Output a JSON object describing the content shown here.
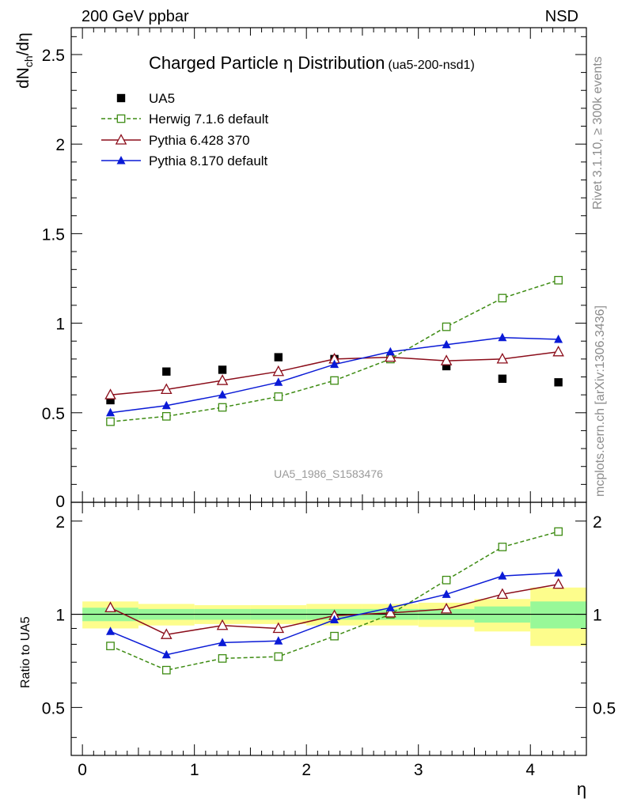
{
  "header": {
    "left": "200 GeV ppbar",
    "right": "NSD"
  },
  "side_labels": {
    "rivet": "Rivet 3.1.10, ≥ 300k events",
    "mcplots": "mcplots.cern.ch [arXiv:1306.3436]"
  },
  "chart_data": [
    {
      "type": "scatter",
      "panel": "main",
      "title": "Charged Particle η Distribution",
      "subtitle": "(ua5-200-nsd1)",
      "ylabel": "dN_ch/dη",
      "ylabel_main": "dN",
      "ylabel_sub": "ch",
      "ylabel_tail": "/dη",
      "xlim": [
        -0.1,
        4.5
      ],
      "ylim": [
        0,
        2.65
      ],
      "yticks": [
        0.5,
        1,
        1.5,
        2,
        2.5
      ],
      "ytick_labels": [
        "0.5",
        "1",
        "1.5",
        "2",
        "2.5"
      ],
      "bottom_cut_label": "0",
      "watermark": "UA5_1986_S1583476",
      "x": [
        0.25,
        0.75,
        1.25,
        1.75,
        2.25,
        2.75,
        3.25,
        3.75,
        4.25
      ],
      "series": [
        {
          "name": "UA5",
          "color": "#000000",
          "marker": "square-filled",
          "line": "none",
          "values": [
            0.57,
            0.73,
            0.74,
            0.81,
            0.8,
            0.8,
            0.76,
            0.69,
            0.67
          ]
        },
        {
          "name": "Herwig 7.1.6 default",
          "color": "#3d8b12",
          "marker": "square-open",
          "line": "dashed",
          "values": [
            0.45,
            0.48,
            0.53,
            0.59,
            0.68,
            0.8,
            0.98,
            1.14,
            1.24
          ]
        },
        {
          "name": "Pythia 6.428 370",
          "color": "#8b0d1a",
          "marker": "triangle-open",
          "line": "solid",
          "values": [
            0.6,
            0.63,
            0.68,
            0.73,
            0.8,
            0.81,
            0.79,
            0.8,
            0.84
          ]
        },
        {
          "name": "Pythia 8.170 default",
          "color": "#0a1ad6",
          "marker": "triangle-filled",
          "line": "solid",
          "values": [
            0.5,
            0.54,
            0.6,
            0.67,
            0.77,
            0.84,
            0.88,
            0.92,
            0.91
          ]
        }
      ]
    },
    {
      "type": "line",
      "panel": "ratio",
      "ylabel": "Ratio to UA5",
      "xlabel": "η",
      "xlim": [
        -0.1,
        4.5
      ],
      "ylim": [
        0.35,
        2.3
      ],
      "xticks": [
        0,
        1,
        2,
        3,
        4
      ],
      "xtick_labels": [
        "0",
        "1",
        "2",
        "3",
        "4"
      ],
      "yticks": [
        0.5,
        1,
        2
      ],
      "ytick_labels": [
        "0.5",
        "1",
        "2"
      ],
      "uncertainty_bands": {
        "bin_edges": [
          0,
          0.5,
          1,
          1.5,
          2,
          2.5,
          3,
          3.5,
          4,
          4.5
        ],
        "stat_color": "#98f898",
        "total_color": "#fdfd8c",
        "stat_lo": [
          0.95,
          0.96,
          0.96,
          0.96,
          0.96,
          0.96,
          0.96,
          0.94,
          0.9
        ],
        "stat_hi": [
          1.05,
          1.04,
          1.04,
          1.04,
          1.04,
          1.04,
          1.04,
          1.06,
          1.1
        ],
        "total_lo": [
          0.9,
          0.92,
          0.93,
          0.93,
          0.92,
          0.92,
          0.91,
          0.88,
          0.79
        ],
        "total_hi": [
          1.1,
          1.08,
          1.07,
          1.07,
          1.08,
          1.08,
          1.09,
          1.12,
          1.22
        ]
      },
      "x": [
        0.25,
        0.75,
        1.25,
        1.75,
        2.25,
        2.75,
        3.25,
        3.75,
        4.25
      ],
      "series": [
        {
          "name": "Herwig 7.1.6 default",
          "color": "#3d8b12",
          "marker": "square-open",
          "line": "dashed",
          "values": [
            0.79,
            0.66,
            0.72,
            0.73,
            0.85,
            1.0,
            1.29,
            1.65,
            1.85
          ]
        },
        {
          "name": "Pythia 6.428 370",
          "color": "#8b0d1a",
          "marker": "triangle-open",
          "line": "solid",
          "values": [
            1.05,
            0.86,
            0.92,
            0.9,
            0.99,
            1.01,
            1.04,
            1.16,
            1.25
          ]
        },
        {
          "name": "Pythia 8.170 default",
          "color": "#0a1ad6",
          "marker": "triangle-filled",
          "line": "solid",
          "values": [
            0.88,
            0.74,
            0.81,
            0.82,
            0.96,
            1.05,
            1.16,
            1.33,
            1.36
          ]
        }
      ]
    }
  ]
}
